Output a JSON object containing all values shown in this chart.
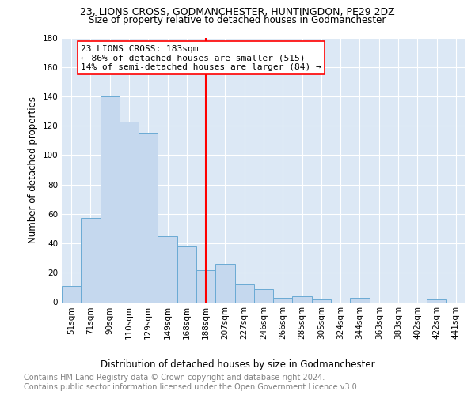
{
  "title": "23, LIONS CROSS, GODMANCHESTER, HUNTINGDON, PE29 2DZ",
  "subtitle": "Size of property relative to detached houses in Godmanchester",
  "xlabel": "Distribution of detached houses by size in Godmanchester",
  "ylabel": "Number of detached properties",
  "categories": [
    "51sqm",
    "71sqm",
    "90sqm",
    "110sqm",
    "129sqm",
    "149sqm",
    "168sqm",
    "188sqm",
    "207sqm",
    "227sqm",
    "246sqm",
    "266sqm",
    "285sqm",
    "305sqm",
    "324sqm",
    "344sqm",
    "363sqm",
    "383sqm",
    "402sqm",
    "422sqm",
    "441sqm"
  ],
  "values": [
    11,
    57,
    140,
    123,
    115,
    45,
    38,
    22,
    26,
    12,
    9,
    3,
    4,
    2,
    0,
    3,
    0,
    0,
    0,
    2,
    0
  ],
  "bar_color": "#c5d8ee",
  "bar_edge_color": "#6aaad4",
  "vline_x": 7.5,
  "vline_color": "red",
  "annotation_text": "23 LIONS CROSS: 183sqm\n← 86% of detached houses are smaller (515)\n14% of semi-detached houses are larger (84) →",
  "annotation_box_color": "white",
  "annotation_box_edge": "red",
  "ylim": [
    0,
    180
  ],
  "yticks": [
    0,
    20,
    40,
    60,
    80,
    100,
    120,
    140,
    160,
    180
  ],
  "background_color": "#dce8f5",
  "footer_text": "Contains HM Land Registry data © Crown copyright and database right 2024.\nContains public sector information licensed under the Open Government Licence v3.0.",
  "title_fontsize": 9,
  "subtitle_fontsize": 8.5,
  "axis_label_fontsize": 8.5,
  "tick_fontsize": 7.5,
  "annotation_fontsize": 8,
  "footer_fontsize": 7
}
